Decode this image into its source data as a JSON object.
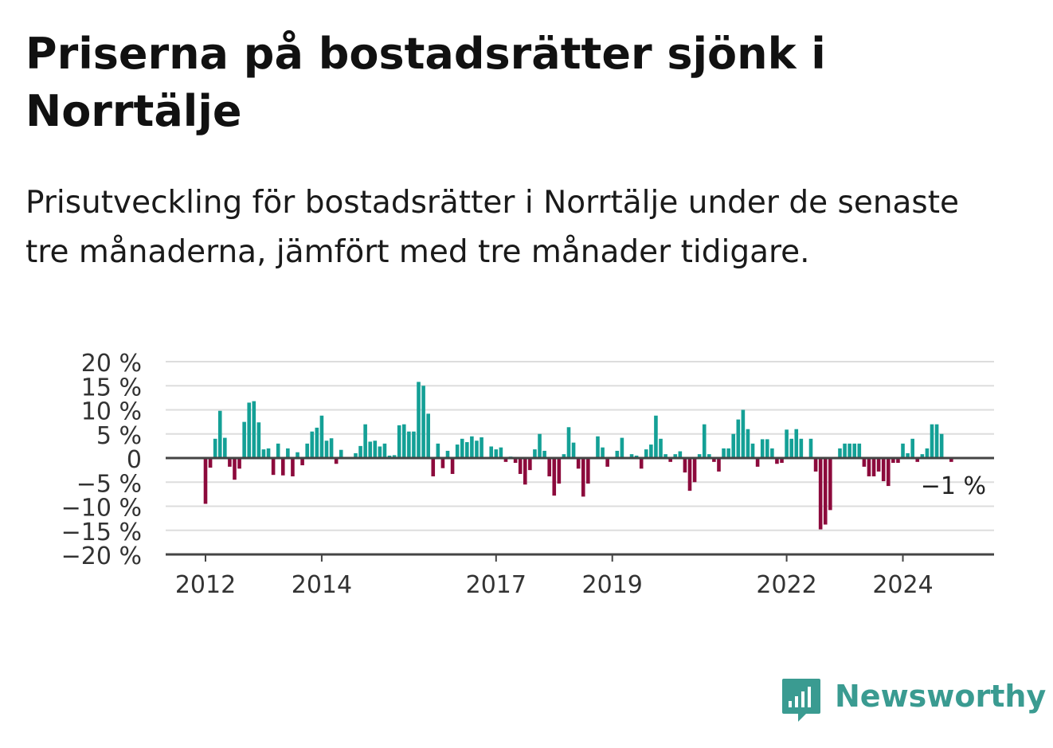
{
  "title": "Priserna på bostadsrätter sjönk i Norrtälje",
  "subtitle": "Prisutveckling för bostadsrätter i Norrtälje under de senaste tre månaderna, jämfört med tre månader tidigare.",
  "brand": {
    "name": "Newsworthy",
    "color": "#3a9b91"
  },
  "colors": {
    "positive": "#14a096",
    "negative": "#8c0a3c",
    "grid": "#dddddd",
    "axis": "#444444",
    "text": "#333333"
  },
  "chart_data": {
    "type": "bar",
    "yticks": [
      "20 %",
      "15 %",
      "10 %",
      "5 %",
      "0",
      "−5 %",
      "−10 %",
      "−15 %",
      "−20 %"
    ],
    "ylim": [
      -20,
      20
    ],
    "xticks": [
      {
        "label": "2012",
        "month": 0
      },
      {
        "label": "2014",
        "month": 24
      },
      {
        "label": "2017",
        "month": 60
      },
      {
        "label": "2019",
        "month": 84
      },
      {
        "label": "2022",
        "month": 120
      },
      {
        "label": "2024",
        "month": 144
      }
    ],
    "annotation": "−1 %",
    "grid": true,
    "values": [
      -9.5,
      -2,
      4,
      9.8,
      4.2,
      -1.8,
      -4.5,
      -2.2,
      7.5,
      11.5,
      11.8,
      7.4,
      1.8,
      2,
      -3.5,
      3,
      -3.6,
      2,
      -3.8,
      1.2,
      -1.5,
      3,
      5.5,
      6.3,
      8.8,
      3.6,
      4.1,
      -1.2,
      1.7,
      0,
      0,
      1,
      2.5,
      7,
      3.4,
      3.6,
      2.4,
      3,
      0.5,
      0.6,
      6.8,
      7,
      5.5,
      5.5,
      15.8,
      15,
      9.2,
      -3.8,
      3,
      -2.1,
      1.5,
      -3.3,
      2.8,
      4,
      3.3,
      4.5,
      3.6,
      4.3,
      0,
      2.4,
      1.8,
      2.2,
      -0.8,
      0.3,
      -1,
      -3.3,
      -5.5,
      -2.5,
      1.8,
      5,
      1.5,
      -3.8,
      -7.8,
      -5.3,
      0.8,
      6.4,
      3.2,
      -2.2,
      -8,
      -5.3,
      0,
      4.5,
      2.2,
      -1.8,
      0,
      1.5,
      4.2,
      0,
      0.8,
      0.5,
      -2.2,
      1.8,
      2.8,
      8.8,
      4,
      0.8,
      -0.8,
      0.8,
      1.4,
      -3,
      -6.8,
      -5,
      0.8,
      7,
      0.8,
      -0.8,
      -2.8,
      2,
      2,
      5,
      8,
      10,
      6,
      3,
      -1.8,
      3.9,
      3.9,
      2,
      -1.2,
      -1,
      5.9,
      4,
      6,
      4,
      0,
      4,
      -2.8,
      -14.8,
      -13.8,
      -10.8,
      0,
      2,
      3,
      3,
      3,
      3,
      -1.8,
      -3.8,
      -3.8,
      -2.8,
      -4.8,
      -5.8,
      -1,
      -1,
      3,
      1,
      4,
      -0.8,
      0.8,
      2,
      7,
      7,
      5,
      0,
      -0.8
    ]
  }
}
